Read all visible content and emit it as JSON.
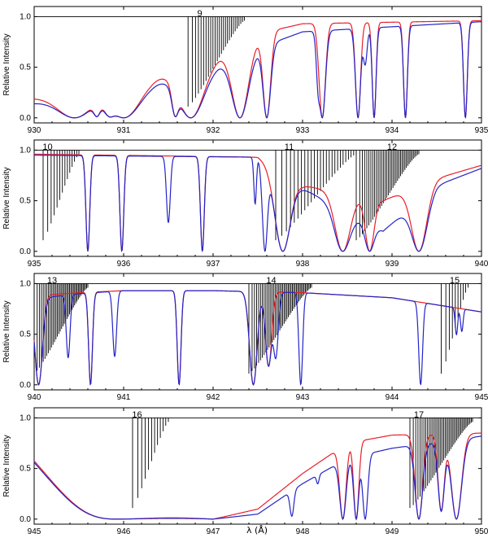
{
  "figure": {
    "xlabel": "λ (Å)",
    "colors": {
      "model_red": "#e8202a",
      "model_blue": "#2424c8",
      "lines": "#000000",
      "axes": "#000000"
    }
  },
  "chart_data": [
    {
      "type": "line",
      "xlim": [
        930,
        935
      ],
      "ylim": [
        -0.05,
        1.1
      ],
      "xticks": [
        "930",
        "931",
        "932",
        "933",
        "934",
        "935"
      ],
      "yticks": [
        "0.0",
        "0.5",
        "1.0"
      ],
      "ylabel": "Relative Intensity",
      "annotations": [
        {
          "text": "9",
          "x": 931.85
        }
      ],
      "band_lines": [
        {
          "start": 931.72,
          "end": 932.35,
          "n": 26
        }
      ],
      "dips": [
        {
          "x": 930.45,
          "w": 0.28,
          "d": 1.0
        },
        {
          "x": 930.7,
          "w": 0.05,
          "d": 0.9
        },
        {
          "x": 930.85,
          "w": 0.08,
          "d": 0.9
        },
        {
          "x": 931.0,
          "w": 0.25,
          "d": 1.0
        },
        {
          "x": 931.58,
          "w": 0.05,
          "d": 0.95
        },
        {
          "x": 931.75,
          "w": 0.2,
          "d": 1.0
        },
        {
          "x": 932.3,
          "w": 0.13,
          "d": 1.0
        },
        {
          "x": 932.6,
          "w": 0.06,
          "d": 1.0
        },
        {
          "x": 933.22,
          "w": 0.05,
          "d": 1.0
        },
        {
          "x": 933.62,
          "w": 0.04,
          "d": 1.0
        },
        {
          "x": 933.8,
          "w": 0.03,
          "d": 1.0
        },
        {
          "x": 934.15,
          "w": 0.03,
          "d": 1.0
        },
        {
          "x": 934.82,
          "w": 0.03,
          "d": 1.0
        }
      ],
      "blue_only": [
        {
          "x": 933.18,
          "w": 0.03,
          "d": 0.6
        },
        {
          "x": 933.7,
          "w": 0.03,
          "d": 0.4
        }
      ],
      "red_env": {
        "x": [
          930,
          930.4,
          931.3,
          932.0,
          932.6,
          933.0,
          935
        ],
        "y": [
          0.2,
          0.25,
          0.4,
          0.6,
          0.85,
          0.93,
          0.96
        ]
      },
      "blue_env": {
        "x": [
          930,
          930.4,
          931.3,
          932.0,
          932.6,
          933.0,
          935
        ],
        "y": [
          0.15,
          0.22,
          0.35,
          0.52,
          0.72,
          0.85,
          0.95
        ]
      }
    },
    {
      "type": "line",
      "xlim": [
        935,
        940
      ],
      "ylim": [
        -0.05,
        1.1
      ],
      "xticks": [
        "935",
        "936",
        "937",
        "938",
        "939",
        "940"
      ],
      "yticks": [
        "0.0",
        "0.5",
        "1.0"
      ],
      "ylabel": "Relative Intensity",
      "annotations": [
        {
          "text": "10",
          "x": 935.15
        },
        {
          "text": "11",
          "x": 937.85
        },
        {
          "text": "12",
          "x": 939.0
        }
      ],
      "band_lines": [
        {
          "start": 935.1,
          "end": 935.5,
          "n": 14
        },
        {
          "start": 937.7,
          "end": 938.6,
          "n": 26
        },
        {
          "start": 938.6,
          "end": 939.3,
          "n": 38
        }
      ],
      "dips": [
        {
          "x": 935.6,
          "w": 0.03,
          "d": 1.0
        },
        {
          "x": 935.98,
          "w": 0.03,
          "d": 1.0
        },
        {
          "x": 936.88,
          "w": 0.03,
          "d": 1.0
        },
        {
          "x": 937.78,
          "w": 0.12,
          "d": 1.0
        },
        {
          "x": 938.45,
          "w": 0.12,
          "d": 1.0
        },
        {
          "x": 938.75,
          "w": 0.07,
          "d": 1.0
        },
        {
          "x": 939.3,
          "w": 0.12,
          "d": 1.0
        }
      ],
      "blue_only": [
        {
          "x": 936.5,
          "w": 0.03,
          "d": 0.7
        },
        {
          "x": 937.58,
          "w": 0.04,
          "d": 1.0
        },
        {
          "x": 937.47,
          "w": 0.02,
          "d": 0.5
        }
      ],
      "red_env": {
        "x": [
          935,
          937.5,
          938.0,
          938.9,
          939.5,
          940
        ],
        "y": [
          0.96,
          0.93,
          0.65,
          0.5,
          0.72,
          0.85
        ]
      },
      "blue_env": {
        "x": [
          935,
          937.5,
          938.0,
          938.9,
          939.5,
          940
        ],
        "y": [
          0.95,
          0.93,
          0.62,
          0.2,
          0.65,
          0.82
        ]
      }
    },
    {
      "type": "line",
      "xlim": [
        940,
        945
      ],
      "ylim": [
        -0.05,
        1.1
      ],
      "xticks": [
        "940",
        "941",
        "942",
        "943",
        "944",
        "945"
      ],
      "yticks": [
        "0.0",
        "0.5",
        "1.0"
      ],
      "ylabel": "Relative Intensity",
      "annotations": [
        {
          "text": "13",
          "x": 940.2
        },
        {
          "text": "14",
          "x": 942.65
        },
        {
          "text": "15",
          "x": 944.7
        }
      ],
      "band_lines": [
        {
          "start": 940.0,
          "end": 940.6,
          "n": 38
        },
        {
          "start": 942.4,
          "end": 943.1,
          "n": 42
        },
        {
          "start": 944.55,
          "end": 944.85,
          "n": 10
        }
      ],
      "dips": [
        {
          "x": 940.05,
          "w": 0.06,
          "d": 1.0
        },
        {
          "x": 940.63,
          "w": 0.03,
          "d": 1.0
        },
        {
          "x": 941.62,
          "w": 0.03,
          "d": 1.0
        },
        {
          "x": 942.45,
          "w": 0.06,
          "d": 1.0
        },
        {
          "x": 942.62,
          "w": 0.05,
          "d": 0.8
        }
      ],
      "blue_only": [
        {
          "x": 940.38,
          "w": 0.03,
          "d": 0.7
        },
        {
          "x": 940.9,
          "w": 0.03,
          "d": 0.7
        },
        {
          "x": 942.7,
          "w": 0.04,
          "d": 0.7
        },
        {
          "x": 942.98,
          "w": 0.03,
          "d": 1.0
        },
        {
          "x": 944.32,
          "w": 0.03,
          "d": 1.0
        },
        {
          "x": 944.72,
          "w": 0.02,
          "d": 0.35
        },
        {
          "x": 944.78,
          "w": 0.02,
          "d": 0.3
        }
      ],
      "red_env": {
        "x": [
          940,
          940.5,
          941,
          942,
          943,
          944,
          945
        ],
        "y": [
          0.88,
          0.91,
          0.93,
          0.93,
          0.91,
          0.86,
          0.72
        ]
      },
      "blue_env": {
        "x": [
          940,
          940.5,
          941,
          942,
          943,
          944,
          945
        ],
        "y": [
          0.85,
          0.9,
          0.93,
          0.93,
          0.91,
          0.86,
          0.72
        ]
      }
    },
    {
      "type": "line",
      "xlim": [
        945,
        950
      ],
      "ylim": [
        -0.05,
        1.1
      ],
      "xticks": [
        "945",
        "946",
        "947",
        "948",
        "949",
        "950"
      ],
      "yticks": [
        "0.0",
        "0.5",
        "1.0"
      ],
      "ylabel": "Relative Intensity",
      "annotations": [
        {
          "text": "16",
          "x": 946.15
        },
        {
          "text": "17",
          "x": 949.3
        }
      ],
      "band_lines": [
        {
          "start": 946.1,
          "end": 946.5,
          "n": 12
        },
        {
          "start": 949.2,
          "end": 949.9,
          "n": 40
        }
      ],
      "dips": [
        {
          "x": 945.92,
          "w": 0.7,
          "d": 1.0
        },
        {
          "x": 948.45,
          "w": 0.05,
          "d": 1.0
        },
        {
          "x": 948.6,
          "w": 0.04,
          "d": 1.0
        },
        {
          "x": 949.3,
          "w": 0.06,
          "d": 1.0
        },
        {
          "x": 949.55,
          "w": 0.05,
          "d": 0.9
        },
        {
          "x": 949.72,
          "w": 0.08,
          "d": 1.0
        }
      ],
      "blue_only": [
        {
          "x": 947.88,
          "w": 0.03,
          "d": 0.9
        },
        {
          "x": 948.7,
          "w": 0.04,
          "d": 1.0
        },
        {
          "x": 948.17,
          "w": 0.02,
          "d": 0.2
        }
      ],
      "red_env": {
        "x": [
          945,
          946,
          947,
          947.5,
          948,
          948.5,
          949,
          950
        ],
        "y": [
          0.7,
          0.05,
          0.0,
          0.1,
          0.45,
          0.75,
          0.83,
          0.85
        ]
      },
      "blue_env": {
        "x": [
          945,
          946,
          947,
          947.5,
          948,
          948.5,
          949,
          950
        ],
        "y": [
          0.68,
          0.03,
          0.0,
          0.05,
          0.35,
          0.6,
          0.7,
          0.82
        ]
      }
    }
  ]
}
